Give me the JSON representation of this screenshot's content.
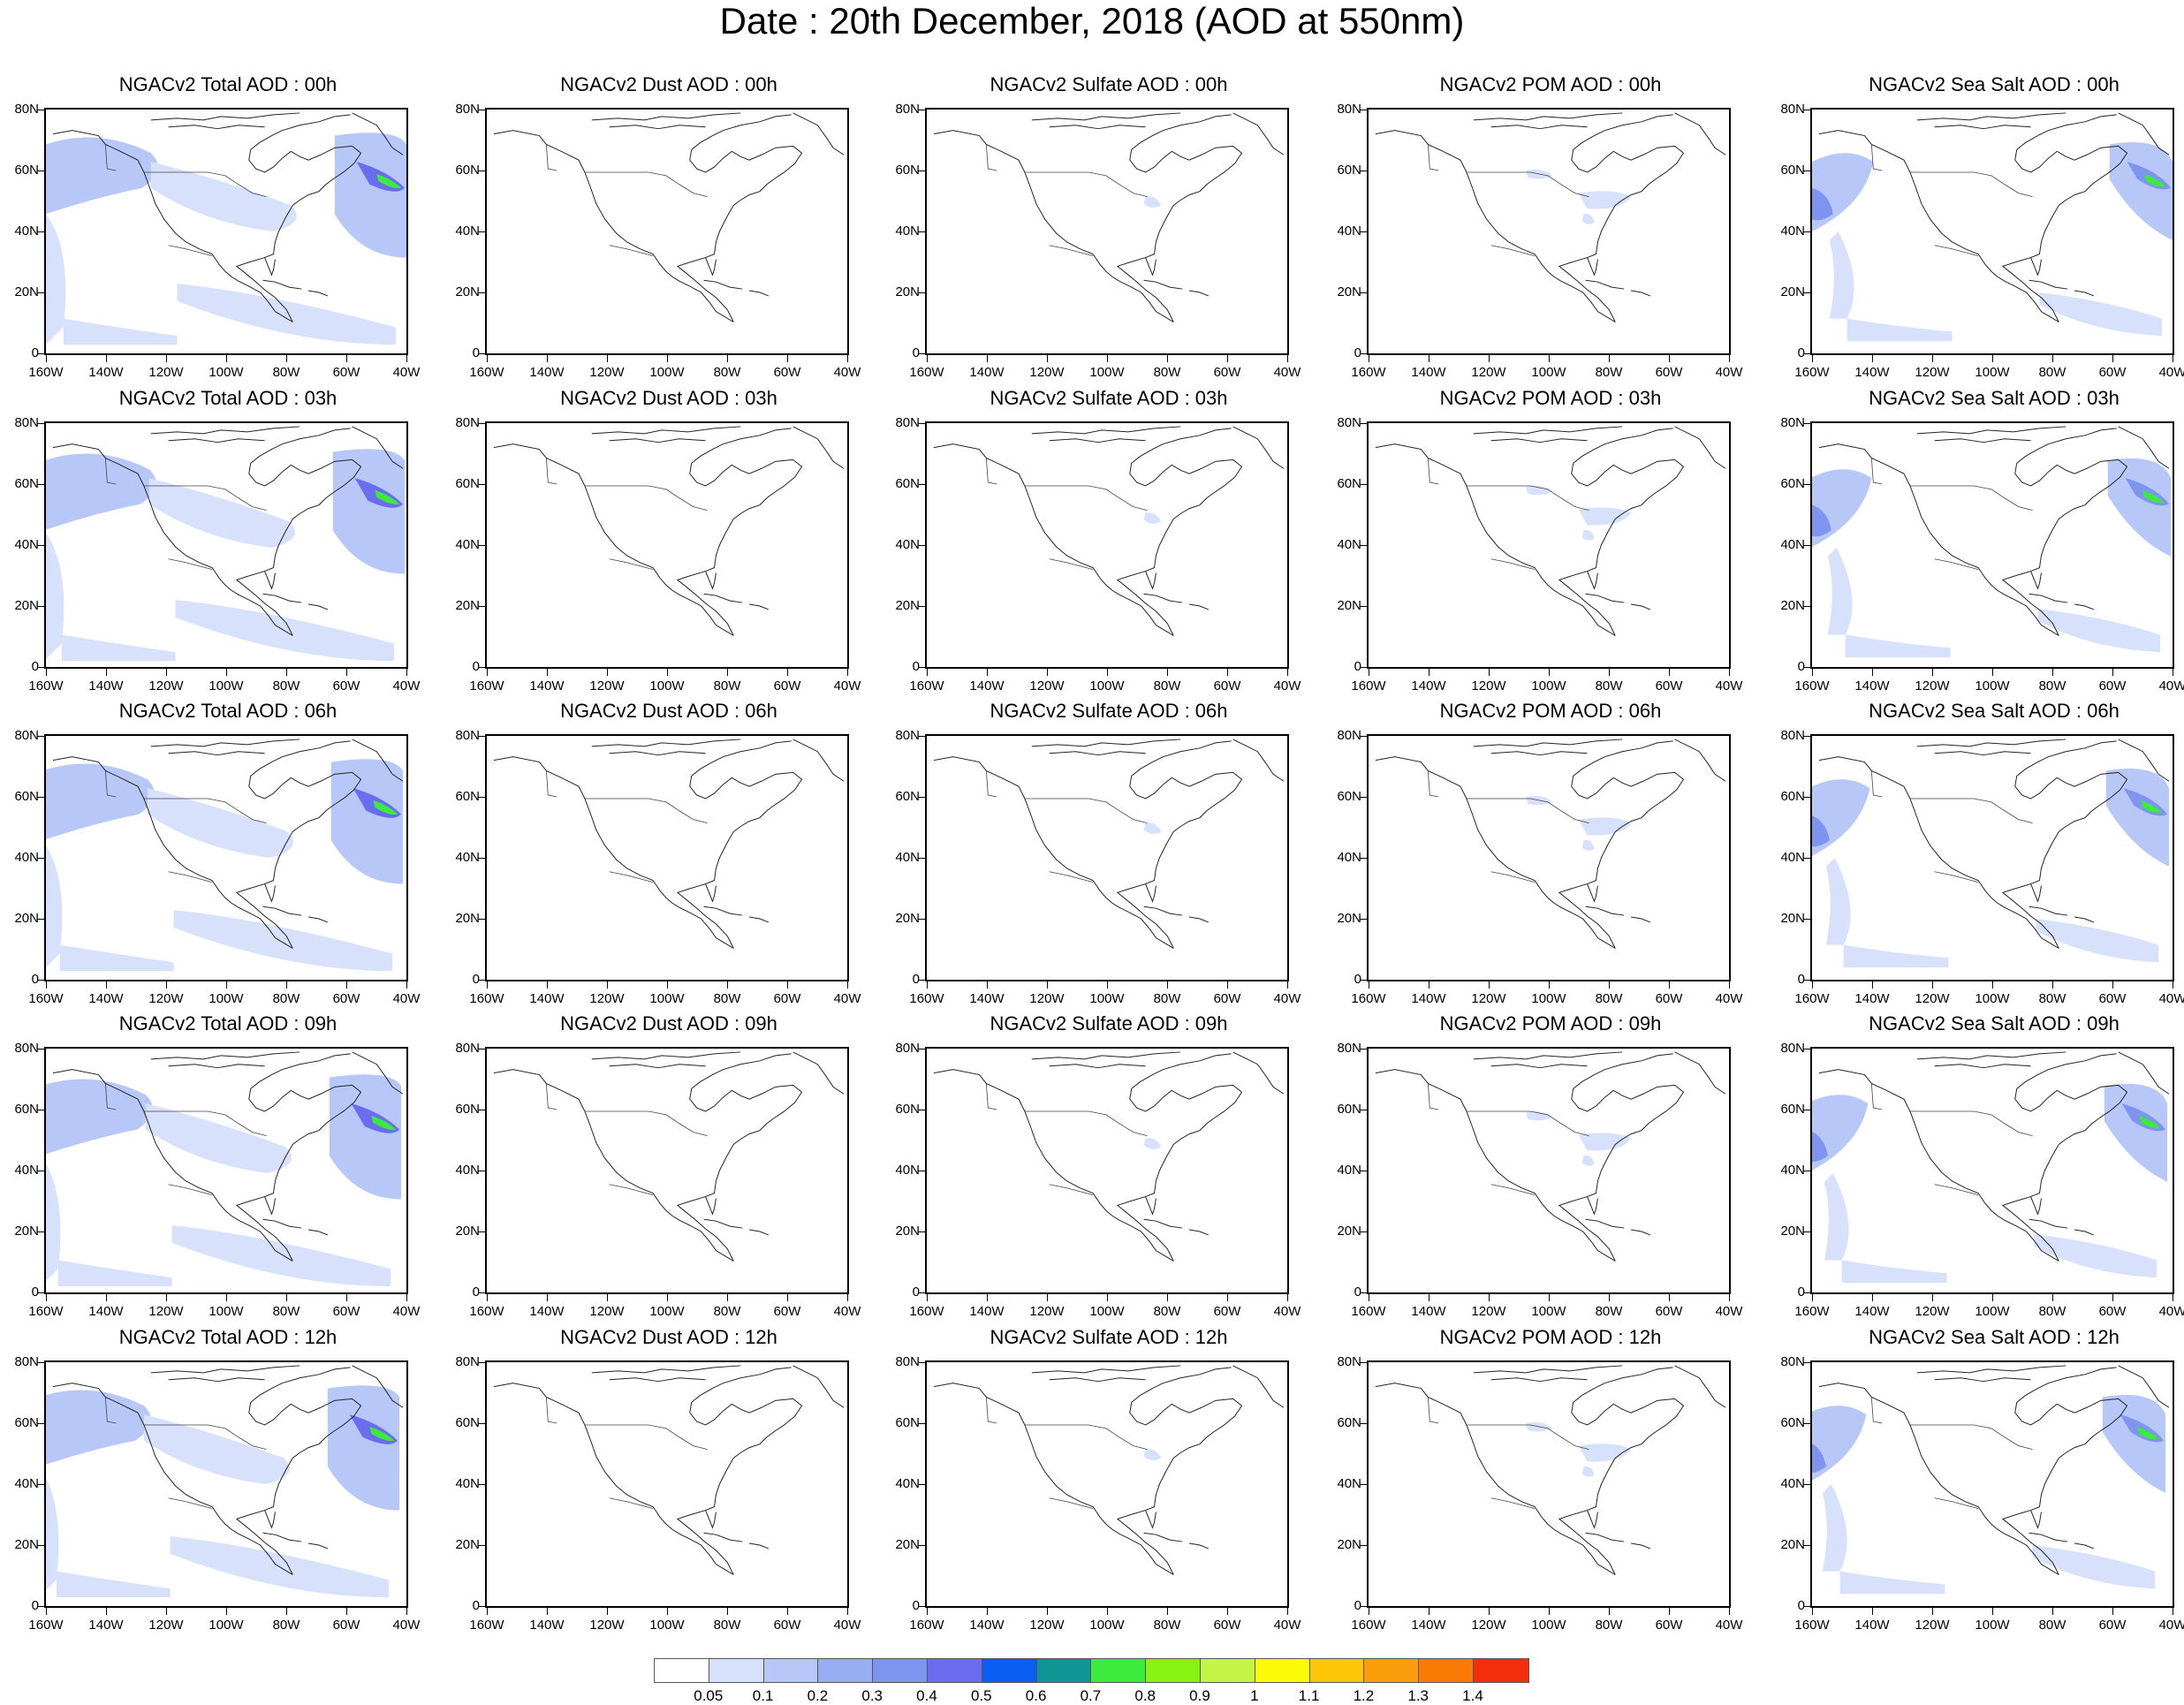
{
  "title": "Date : 20th December, 2018 (AOD at 550nm)",
  "map_axes": {
    "lat_ticks": [
      "80N",
      "60N",
      "40N",
      "20N",
      "0"
    ],
    "lon_ticks": [
      "160W",
      "140W",
      "120W",
      "100W",
      "80W",
      "60W",
      "40W"
    ]
  },
  "columns": [
    {
      "species": "total",
      "titles": [
        "NGACv2 Total AOD : 00h",
        "NGACv2 Total AOD : 03h",
        "NGACv2 Total AOD : 06h",
        "NGACv2 Total AOD : 09h",
        "NGACv2 Total AOD  : 12h"
      ]
    },
    {
      "species": "dust",
      "titles": [
        "NGACv2 Dust AOD : 00h",
        "NGACv2 Dust AOD : 03h",
        "NGACv2 Dust AOD : 06h",
        "NGACv2 Dust AOD : 09h",
        "NGACv2 Dust AOD : 12h"
      ]
    },
    {
      "species": "sulfate",
      "titles": [
        "NGACv2 Sulfate AOD : 00h",
        "NGACv2 Sulfate AOD : 03h",
        "NGACv2 Sulfate AOD : 06h",
        "NGACv2 Sulfate AOD : 09h",
        "NGACv2 Sulfate AOD : 12h"
      ]
    },
    {
      "species": "pom",
      "titles": [
        "NGACv2 POM AOD : 00h",
        "NGACv2 POM AOD : 03h",
        "NGACv2 POM AOD : 06h",
        "NGACv2 POM AOD : 09h",
        "NGACv2 POM  AOD : 12h"
      ]
    },
    {
      "species": "seasalt",
      "titles": [
        "NGACv2 Sea Salt AOD : 00h",
        "NGACv2 Sea Salt AOD : 03h",
        "NGACv2 Sea Salt AOD : 06h",
        "NGACv2 Sea Salt  AOD : 09h",
        "NGACv2 Sea Salt  AOD : 12h"
      ]
    }
  ],
  "colorbar": {
    "labels": [
      "0.05",
      "0.1",
      "0.2",
      "0.3",
      "0.4",
      "0.5",
      "0.6",
      "0.7",
      "0.8",
      "0.9",
      "1",
      "1.1",
      "1.2",
      "1.3",
      "1.4"
    ],
    "colors": [
      "#ffffff",
      "#d7e1fb",
      "#b7c7f7",
      "#98aef3",
      "#7f94ef",
      "#6a6df0",
      "#0a5ef4",
      "#0f9594",
      "#3cec3c",
      "#88f212",
      "#c4f446",
      "#fbfb07",
      "#fdc707",
      "#fc9e0c",
      "#f97a05",
      "#f42d0c"
    ]
  }
}
